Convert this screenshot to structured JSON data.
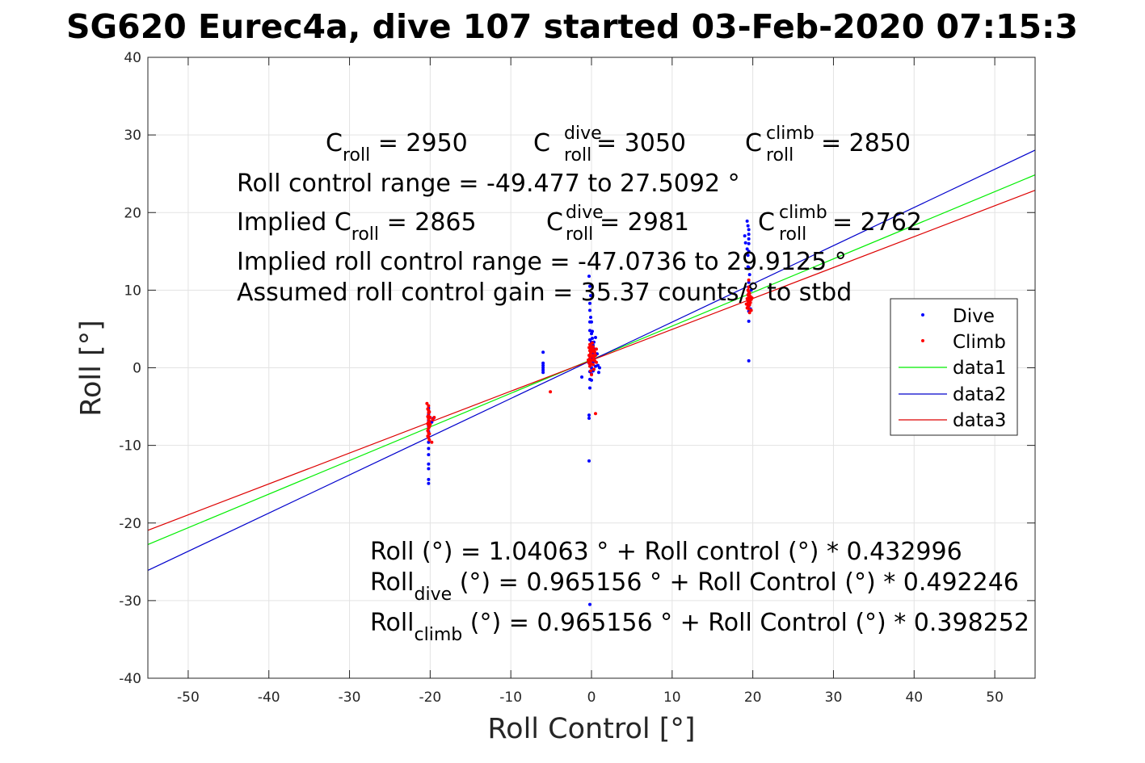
{
  "chart_data": {
    "type": "scatter",
    "title": "SG620 Eurec4a, dive 107 started 03-Feb-2020 07:15:3",
    "xlabel": "Roll Control [°]",
    "ylabel": "Roll [°]",
    "xlim": [
      -55,
      55
    ],
    "ylim": [
      -40,
      40
    ],
    "xticks": [
      -50,
      -40,
      -30,
      -20,
      -10,
      0,
      10,
      20,
      30,
      40,
      50
    ],
    "yticks": [
      -40,
      -30,
      -20,
      -10,
      0,
      10,
      20,
      30,
      40
    ],
    "xtick_labels": [
      "-50",
      "-40",
      "-30",
      "-20",
      "-10",
      "0",
      "10",
      "20",
      "30",
      "40",
      "50"
    ],
    "ytick_labels": [
      "-40",
      "-30",
      "-20",
      "-10",
      "0",
      "10",
      "20",
      "30",
      "40"
    ],
    "grid": true,
    "legend_position": "right",
    "series": [
      {
        "name": "Dive",
        "kind": "points",
        "color": "#0000ff",
        "points": [
          [
            -20.2,
            -5.2
          ],
          [
            -20.2,
            -6.0
          ],
          [
            -20.2,
            -6.8
          ],
          [
            -20.2,
            -7.5
          ],
          [
            -20.2,
            -8.2
          ],
          [
            -20.2,
            -8.9
          ],
          [
            -20.2,
            -9.6
          ],
          [
            -20.2,
            -10.4
          ],
          [
            -20.2,
            -11.2
          ],
          [
            -20.2,
            -12.4
          ],
          [
            -20.2,
            -13.0
          ],
          [
            -20.2,
            -14.4
          ],
          [
            -20.2,
            -14.9
          ],
          [
            -19.8,
            -7.0
          ],
          [
            -19.6,
            -6.5
          ],
          [
            -6.0,
            2.0
          ],
          [
            -6.0,
            0.6
          ],
          [
            -6.0,
            0.3
          ],
          [
            -6.0,
            0.0
          ],
          [
            -6.0,
            -0.3
          ],
          [
            -6.0,
            -0.6
          ],
          [
            -1.2,
            -1.2
          ],
          [
            -0.3,
            11.8
          ],
          [
            -0.3,
            -6.1
          ],
          [
            -0.3,
            -6.5
          ],
          [
            -0.3,
            -12.0
          ],
          [
            -0.2,
            -30.5
          ],
          [
            -0.2,
            10.5
          ],
          [
            -0.2,
            8.3
          ],
          [
            -0.2,
            7.4
          ],
          [
            -0.2,
            5.9
          ],
          [
            -0.2,
            4.8
          ],
          [
            -0.2,
            3.6
          ],
          [
            -0.2,
            2.6
          ],
          [
            -0.2,
            1.5
          ],
          [
            -0.2,
            0.5
          ],
          [
            -0.2,
            -0.5
          ],
          [
            -0.2,
            -1.5
          ],
          [
            -0.2,
            -2.6
          ],
          [
            -0.1,
            9.3
          ],
          [
            -0.1,
            6.5
          ],
          [
            0.0,
            5.9
          ],
          [
            0.0,
            4.4
          ],
          [
            0.0,
            3.3
          ],
          [
            0.0,
            2.2
          ],
          [
            0.0,
            1.1
          ],
          [
            0.0,
            0.0
          ],
          [
            0.0,
            -0.8
          ],
          [
            0.0,
            -1.6
          ],
          [
            0.1,
            4.7
          ],
          [
            0.1,
            3.8
          ],
          [
            0.2,
            2.9
          ],
          [
            0.2,
            1.8
          ],
          [
            0.2,
            0.7
          ],
          [
            0.2,
            -0.4
          ],
          [
            0.3,
            3.3
          ],
          [
            0.3,
            1.3
          ],
          [
            0.4,
            2.4
          ],
          [
            0.5,
            3.9
          ],
          [
            0.5,
            0.2
          ],
          [
            0.7,
            1.8
          ],
          [
            0.8,
            0.3
          ],
          [
            1.0,
            0.0
          ],
          [
            0.9,
            -0.6
          ],
          [
            19.0,
            17.0
          ],
          [
            19.1,
            16.1
          ],
          [
            19.3,
            18.9
          ],
          [
            19.3,
            15.3
          ],
          [
            19.4,
            18.3
          ],
          [
            19.4,
            14.5
          ],
          [
            19.4,
            13.0
          ],
          [
            19.5,
            17.8
          ],
          [
            19.5,
            17.2
          ],
          [
            19.5,
            16.6
          ],
          [
            19.5,
            16.0
          ],
          [
            19.5,
            15.0
          ],
          [
            19.5,
            12.9
          ],
          [
            19.5,
            11.0
          ],
          [
            19.5,
            10.4
          ],
          [
            19.5,
            9.5
          ],
          [
            19.5,
            8.0
          ],
          [
            19.5,
            7.3
          ],
          [
            19.5,
            6.0
          ],
          [
            19.5,
            0.9
          ],
          [
            19.6,
            12.0
          ],
          [
            19.6,
            8.6
          ],
          [
            19.7,
            7.6
          ],
          [
            19.8,
            10.0
          ]
        ]
      },
      {
        "name": "Climb",
        "kind": "points",
        "color": "#ff0000",
        "points": [
          [
            -20.4,
            -4.6
          ],
          [
            -20.3,
            -5.3
          ],
          [
            -20.3,
            -6.3
          ],
          [
            -20.3,
            -7.2
          ],
          [
            -20.3,
            -8.1
          ],
          [
            -20.3,
            -8.8
          ],
          [
            -20.2,
            -4.9
          ],
          [
            -20.2,
            -5.5
          ],
          [
            -20.2,
            -5.8
          ],
          [
            -20.2,
            -6.2
          ],
          [
            -20.2,
            -6.6
          ],
          [
            -20.2,
            -7.0
          ],
          [
            -20.2,
            -7.4
          ],
          [
            -20.2,
            -7.8
          ],
          [
            -20.2,
            -8.4
          ],
          [
            -20.2,
            -9.0
          ],
          [
            -20.1,
            -5.7
          ],
          [
            -20.1,
            -6.9
          ],
          [
            -20.1,
            -7.6
          ],
          [
            -20.1,
            -8.5
          ],
          [
            -20.0,
            -6.4
          ],
          [
            -20.0,
            -7.3
          ],
          [
            -19.8,
            -9.6
          ],
          [
            -19.7,
            -6.7
          ],
          [
            -19.5,
            -6.4
          ],
          [
            -20.1,
            -9.3
          ],
          [
            -5.1,
            -3.1
          ],
          [
            0.5,
            -5.9
          ],
          [
            -0.3,
            2.6
          ],
          [
            -0.3,
            1.6
          ],
          [
            -0.3,
            0.6
          ],
          [
            -0.2,
            3.0
          ],
          [
            -0.2,
            2.2
          ],
          [
            -0.2,
            1.2
          ],
          [
            -0.2,
            0.2
          ],
          [
            -0.1,
            2.8
          ],
          [
            -0.1,
            1.9
          ],
          [
            -0.1,
            0.9
          ],
          [
            -0.1,
            -0.4
          ],
          [
            0.0,
            2.5
          ],
          [
            0.0,
            1.5
          ],
          [
            0.0,
            0.5
          ],
          [
            0.0,
            -0.9
          ],
          [
            0.1,
            3.2
          ],
          [
            0.1,
            2.1
          ],
          [
            0.1,
            1.0
          ],
          [
            0.2,
            2.7
          ],
          [
            0.2,
            1.6
          ],
          [
            0.2,
            0.4
          ],
          [
            0.3,
            2.3
          ],
          [
            0.3,
            1.3
          ],
          [
            0.4,
            2.0
          ],
          [
            0.4,
            0.9
          ],
          [
            0.5,
            1.6
          ],
          [
            0.6,
            0.7
          ],
          [
            0.6,
            2.4
          ],
          [
            -0.4,
            1.0
          ],
          [
            0.3,
            -0.2
          ],
          [
            19.3,
            8.9
          ],
          [
            19.3,
            8.2
          ],
          [
            19.3,
            7.7
          ],
          [
            19.4,
            10.0
          ],
          [
            19.4,
            9.4
          ],
          [
            19.4,
            8.6
          ],
          [
            19.4,
            7.9
          ],
          [
            19.5,
            10.4
          ],
          [
            19.5,
            9.8
          ],
          [
            19.5,
            9.1
          ],
          [
            19.5,
            8.5
          ],
          [
            19.5,
            7.6
          ],
          [
            19.6,
            9.6
          ],
          [
            19.6,
            8.8
          ],
          [
            19.6,
            8.1
          ],
          [
            19.7,
            9.2
          ],
          [
            19.7,
            8.4
          ],
          [
            19.8,
            7.4
          ],
          [
            19.8,
            8.8
          ],
          [
            19.2,
            8.2
          ],
          [
            19.9,
            9.0
          ],
          [
            19.6,
            7.1
          ],
          [
            19.5,
            11.3
          ]
        ]
      },
      {
        "name": "data1",
        "kind": "line",
        "color": "#00ee00",
        "intercept": 1.04063,
        "slope": 0.432996,
        "x_range": [
          -55,
          55
        ]
      },
      {
        "name": "data2",
        "kind": "line",
        "color": "#0000cc",
        "intercept": 0.965156,
        "slope": 0.492246,
        "x_range": [
          -55,
          55
        ]
      },
      {
        "name": "data3",
        "kind": "line",
        "color": "#dd0000",
        "intercept": 0.965156,
        "slope": 0.398252,
        "x_range": [
          -55,
          55
        ]
      }
    ],
    "annotations": {
      "c_roll": {
        "base": "C",
        "sub": "roll",
        "value": " = 2950"
      },
      "c_roll_dive": {
        "base": "C",
        "sup": "dive",
        "sub": "roll",
        "value": " = 3050"
      },
      "c_roll_climb": {
        "base": "C",
        "sup": "climb",
        "sub": "roll",
        "value": " = 2850"
      },
      "range_line": "Roll control range = -49.477 to 27.5092 °",
      "implied_prefix": "Implied C",
      "implied_sub": "roll",
      "implied_value": " = 2865",
      "implied_dive": {
        "base": "C",
        "sup": "dive",
        "sub": "roll",
        "value": " = 2981"
      },
      "implied_climb": {
        "base": "C",
        "sup": "climb",
        "sub": "roll",
        "value": " = 2762"
      },
      "implied_range_line": "Implied roll control range = -47.0736 to 29.9125 °",
      "gain_line": "Assumed roll control gain = 35.37 counts/° to stbd",
      "fit_line": "Roll (°) = 1.04063 ° + Roll control (°) * 0.432996",
      "fit_dive": {
        "base": "Roll",
        "sub": "dive",
        "rest": " (°) = 0.965156 ° + Roll Control (°) * 0.492246"
      },
      "fit_climb": {
        "base": "Roll",
        "sub": "climb",
        "rest": " (°) = 0.965156 ° + Roll Control (°) * 0.398252"
      }
    }
  }
}
